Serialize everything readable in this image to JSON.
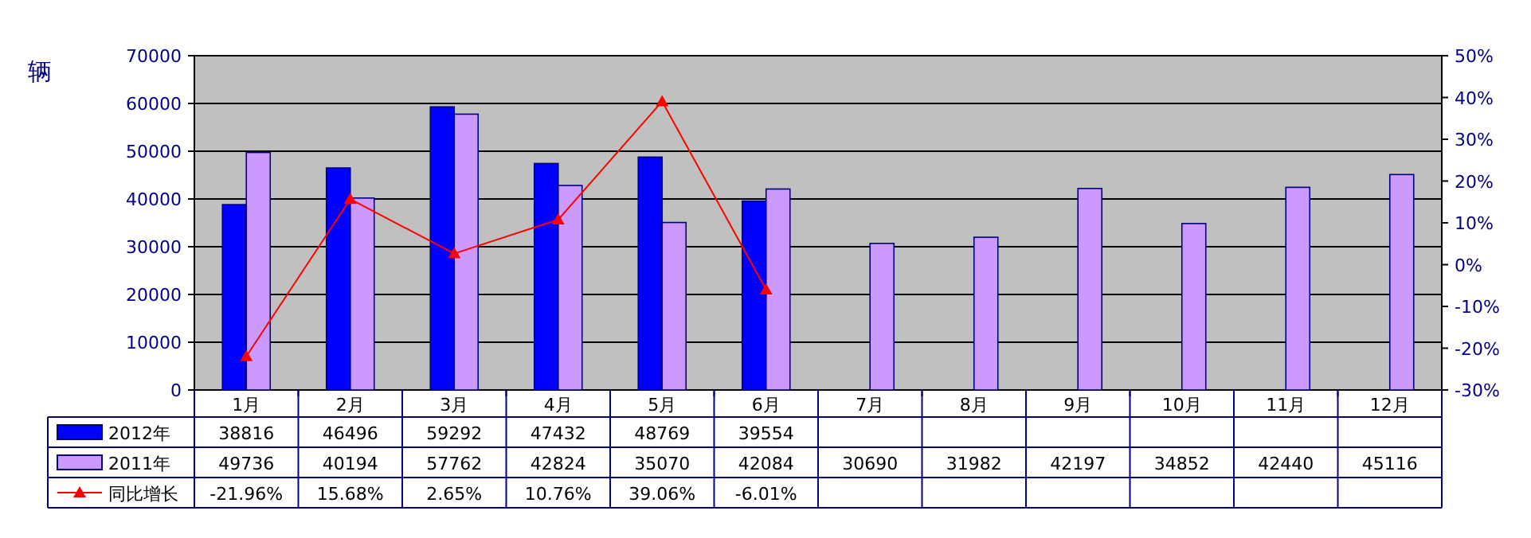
{
  "chart_data": {
    "type": "bar",
    "ylabel": "辆",
    "categories": [
      "1月",
      "2月",
      "3月",
      "4月",
      "5月",
      "6月",
      "7月",
      "8月",
      "9月",
      "10月",
      "11月",
      "12月"
    ],
    "series": [
      {
        "name": "2012年",
        "color": "#0000ff",
        "values": [
          38816,
          46496,
          59292,
          47432,
          48769,
          39554,
          null,
          null,
          null,
          null,
          null,
          null
        ],
        "value_labels": [
          "38816",
          "46496",
          "59292",
          "47432",
          "48769",
          "39554",
          null,
          null,
          null,
          null,
          null,
          null
        ]
      },
      {
        "name": "2011年",
        "color": "#cc99ff",
        "values": [
          49736,
          40194,
          57762,
          42824,
          35070,
          42084,
          30690,
          31982,
          42197,
          34852,
          42440,
          45116
        ],
        "value_labels": [
          "49736",
          "40194",
          "57762",
          "42824",
          "35070",
          "42084",
          "30690",
          "31982",
          "42197",
          "34852",
          "42440",
          "45116"
        ]
      },
      {
        "name": "同比增长",
        "type": "line",
        "axis": "y2",
        "color": "#ff0000",
        "marker": "triangle",
        "values": [
          -21.96,
          15.68,
          2.65,
          10.76,
          39.06,
          -6.01,
          null,
          null,
          null,
          null,
          null,
          null
        ],
        "value_labels": [
          "-21.96%",
          "15.68%",
          "2.65%",
          "10.76%",
          "39.06%",
          "-6.01%",
          null,
          null,
          null,
          null,
          null,
          null
        ]
      }
    ],
    "ylim": [
      0,
      70000
    ],
    "yticks": [
      0,
      10000,
      20000,
      30000,
      40000,
      50000,
      60000,
      70000
    ],
    "y2lim": [
      -30,
      50
    ],
    "y2ticks": [
      {
        "value": -30,
        "label": "-30%"
      },
      {
        "value": -20,
        "label": "-20%"
      },
      {
        "value": -10,
        "label": "-10%"
      },
      {
        "value": 0,
        "label": "0%"
      },
      {
        "value": 10,
        "label": "10%"
      },
      {
        "value": 20,
        "label": "20%"
      },
      {
        "value": 30,
        "label": "30%"
      },
      {
        "value": 40,
        "label": "40%"
      },
      {
        "value": 50,
        "label": "50%"
      }
    ],
    "grid": "y",
    "legend": "bottom"
  }
}
